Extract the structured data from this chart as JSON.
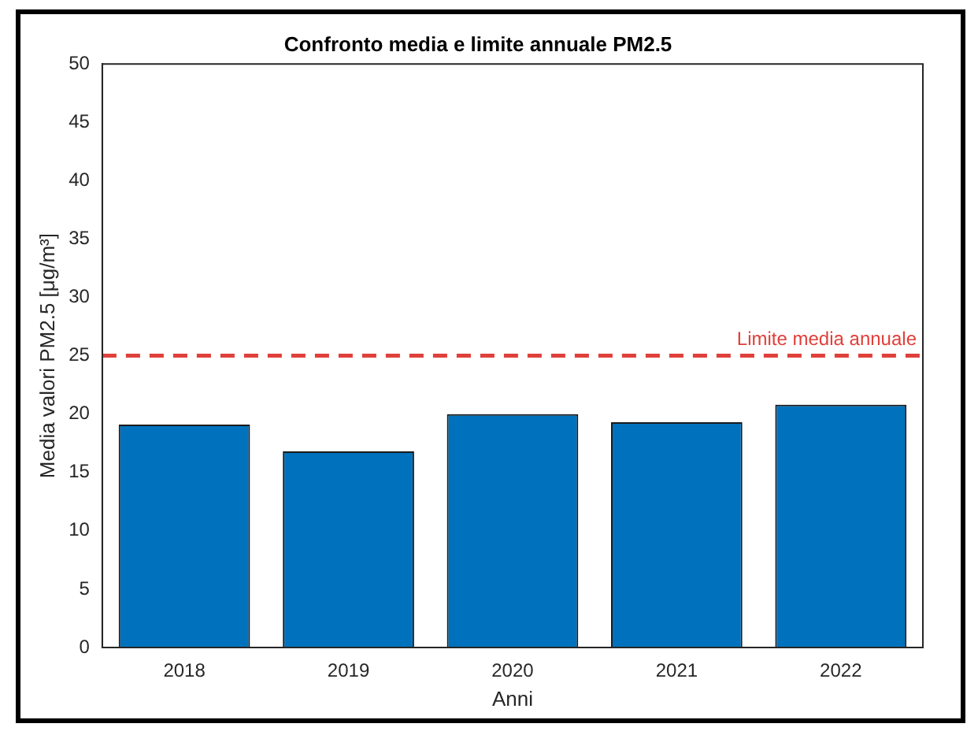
{
  "chart_data": {
    "type": "bar",
    "title": "Confronto media e limite annuale PM2.5",
    "xlabel": "Anni",
    "ylabel": "Media valori PM2.5 [μg/m³]",
    "categories": [
      "2018",
      "2019",
      "2020",
      "2021",
      "2022"
    ],
    "values": [
      19.1,
      16.8,
      20.0,
      19.3,
      20.8
    ],
    "color": "#0072bd",
    "ylim": [
      0,
      50
    ],
    "yticks": [
      0,
      5,
      10,
      15,
      20,
      25,
      30,
      35,
      40,
      45,
      50
    ],
    "grid": false,
    "legend": false,
    "ref_lines": [
      {
        "axis": "y",
        "value": 25,
        "label": "Limite media annuale",
        "color": "#e0403a",
        "line_style": "dashed"
      }
    ]
  }
}
